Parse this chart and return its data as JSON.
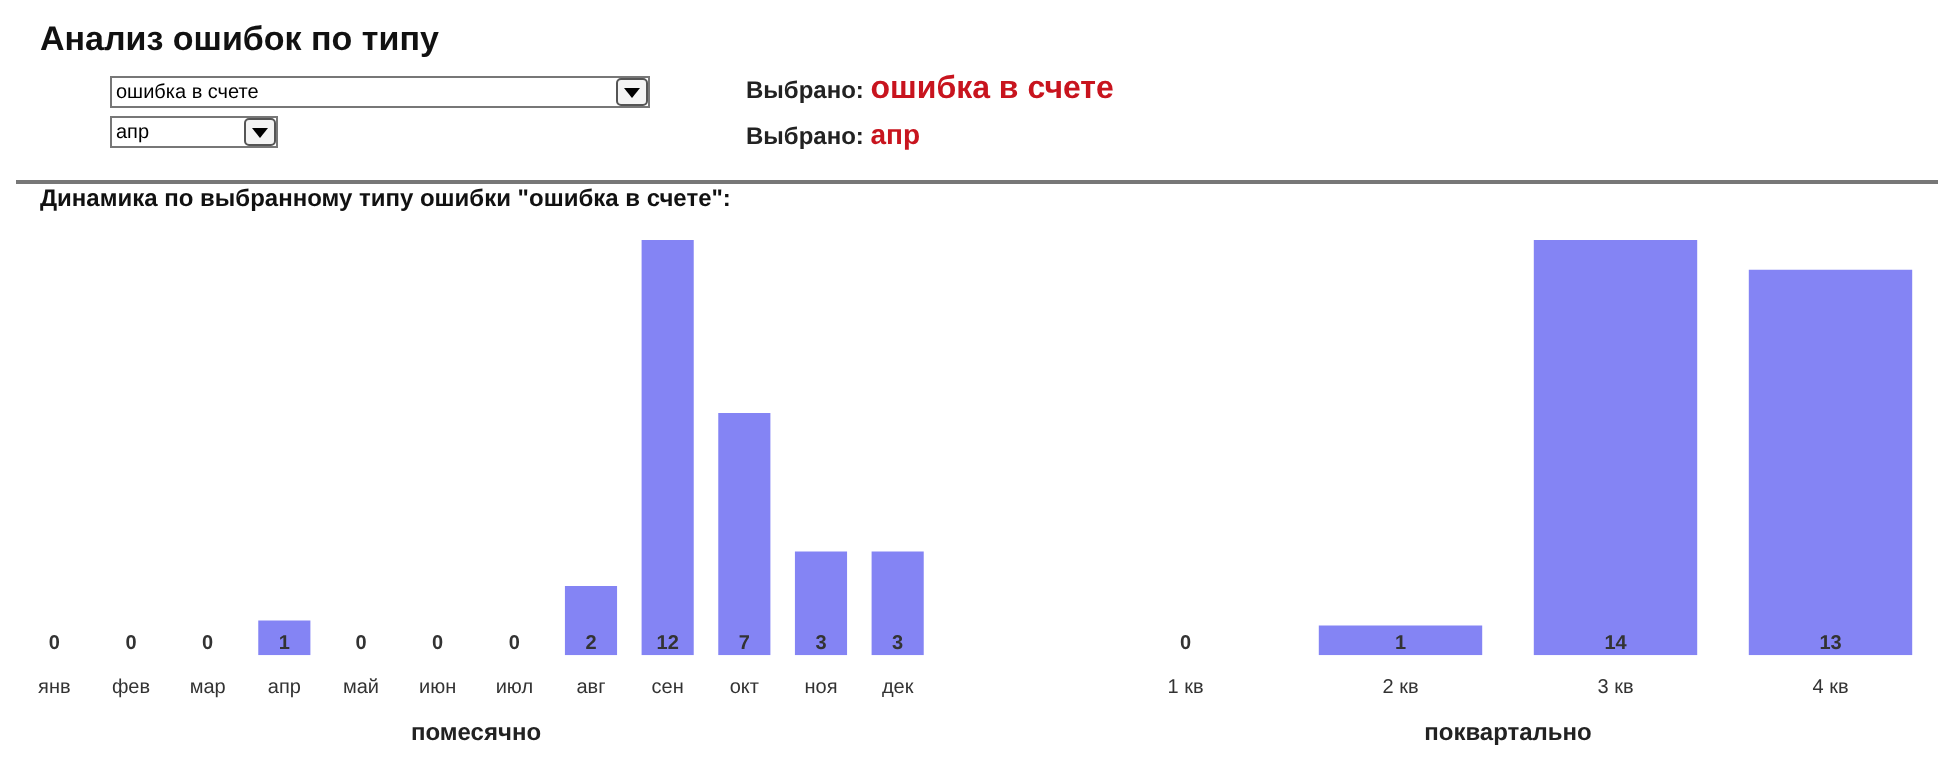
{
  "chart_data": [
    {
      "type": "other",
      "title": "Анализ ошибок по типу",
      "annotations": [
        "ошибка в счете",
        "апр",
        "Выбрано:",
        "ошибка в счете",
        "Выбрано:",
        "апр"
      ]
    },
    {
      "type": "bar",
      "title": "Динамика по выбранному типу ошибки \"ошибка в счете\":",
      "xlabel": "помесячно",
      "categories": [
        "янв",
        "фев",
        "мар",
        "апр",
        "май",
        "июн",
        "июл",
        "авг",
        "сен",
        "окт",
        "ноя",
        "дек"
      ],
      "values": [
        0,
        0,
        0,
        1,
        0,
        0,
        0,
        2,
        12,
        7,
        3,
        3
      ],
      "color": "#8484f4",
      "data_labels": true,
      "tick_labels": "x",
      "grid": false,
      "legend": false
    },
    {
      "type": "bar",
      "xlabel": "поквартально",
      "categories": [
        "1 кв",
        "2 кв",
        "3 кв",
        "4 кв"
      ],
      "values": [
        0,
        1,
        14,
        13
      ],
      "color": "#8484f4",
      "data_labels": true,
      "tick_labels": "x",
      "grid": false,
      "legend": false
    }
  ]
}
